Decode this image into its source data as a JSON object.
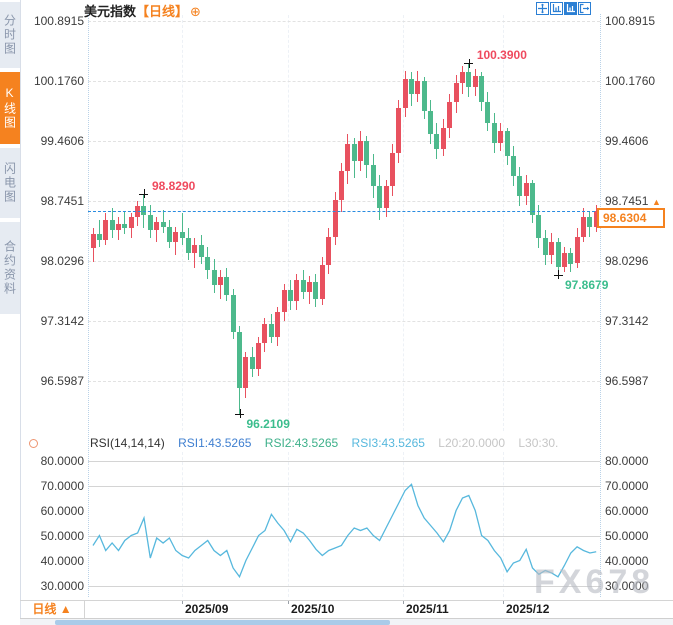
{
  "app": {
    "watermark": "FX678"
  },
  "sidebar": {
    "tabs": [
      {
        "label": "分时图",
        "active": false
      },
      {
        "label": "K线图",
        "active": true
      },
      {
        "label": "闪电图",
        "active": false
      },
      {
        "label": "合约资料",
        "active": false
      }
    ]
  },
  "header": {
    "title": "美元指数",
    "period_tag": "【日线】",
    "add_button": "⊕"
  },
  "price_box": {
    "value": "98.6304",
    "arrow": "▲"
  },
  "bottom": {
    "period_label": "日线 ▲",
    "dates": [
      "2025/09",
      "2025/10",
      "2025/11",
      "2025/12"
    ]
  },
  "rsi_header": {
    "name": "RSI(14,14,14)",
    "rsi1": "RSI1:43.5265",
    "rsi2": "RSI2:43.5265",
    "rsi3": "RSI3:43.5265",
    "l20": "L20:20.0000",
    "l30": "L30:30."
  },
  "chart_data": [
    {
      "type": "candlestick",
      "title": "美元指数",
      "period": "日线",
      "y_ticks": [
        "100.8915",
        "100.1760",
        "99.4606",
        "98.7451",
        "98.0296",
        "97.3142",
        "96.5987"
      ],
      "x_ticks": [
        "2025/09",
        "2025/10",
        "2025/11",
        "2025/12"
      ],
      "ylim": [
        96.24,
        101.25
      ],
      "current_price": 98.6304,
      "markers": [
        {
          "label": "98.8290",
          "value": 98.829,
          "index": 8,
          "kind": "high"
        },
        {
          "label": "100.3900",
          "value": 100.39,
          "index": 59,
          "kind": "high"
        },
        {
          "label": "96.2109",
          "value": 96.2109,
          "index": 23,
          "kind": "low"
        },
        {
          "label": "97.8679",
          "value": 97.8679,
          "index": 73,
          "kind": "low"
        }
      ],
      "colors": {
        "up": "#e8515f",
        "down": "#4db98c",
        "price_line": "#2a8ce0",
        "marker_high": "#ef4a5e",
        "marker_low": "#3bbd8d",
        "price_box": "#f5821f"
      },
      "ohlc": [
        [
          98.18,
          98.42,
          98.02,
          98.35
        ],
        [
          98.35,
          98.52,
          98.2,
          98.28
        ],
        [
          98.28,
          98.6,
          98.22,
          98.52
        ],
        [
          98.52,
          98.66,
          98.3,
          98.4
        ],
        [
          98.4,
          98.55,
          98.28,
          98.47
        ],
        [
          98.47,
          98.62,
          98.35,
          98.42
        ],
        [
          98.42,
          98.6,
          98.3,
          98.55
        ],
        [
          98.55,
          98.75,
          98.45,
          98.68
        ],
        [
          98.68,
          98.829,
          98.42,
          98.58
        ],
        [
          98.58,
          98.7,
          98.3,
          98.4
        ],
        [
          98.4,
          98.56,
          98.26,
          98.5
        ],
        [
          98.5,
          98.64,
          98.36,
          98.44
        ],
        [
          98.44,
          98.52,
          98.18,
          98.26
        ],
        [
          98.26,
          98.44,
          98.1,
          98.38
        ],
        [
          98.38,
          98.6,
          98.22,
          98.3
        ],
        [
          98.3,
          98.42,
          98.04,
          98.12
        ],
        [
          98.12,
          98.3,
          97.95,
          98.22
        ],
        [
          98.22,
          98.34,
          98.0,
          98.08
        ],
        [
          98.08,
          98.2,
          97.82,
          97.92
        ],
        [
          97.92,
          98.05,
          97.65,
          97.74
        ],
        [
          97.74,
          97.92,
          97.58,
          97.84
        ],
        [
          97.84,
          97.95,
          97.55,
          97.62
        ],
        [
          97.62,
          97.7,
          97.1,
          97.18
        ],
        [
          97.18,
          97.25,
          96.2109,
          96.52
        ],
        [
          96.52,
          96.95,
          96.4,
          96.88
        ],
        [
          96.88,
          97.0,
          96.65,
          96.74
        ],
        [
          96.74,
          97.12,
          96.66,
          97.05
        ],
        [
          97.05,
          97.35,
          96.95,
          97.28
        ],
        [
          97.28,
          97.4,
          97.05,
          97.12
        ],
        [
          97.12,
          97.48,
          97.02,
          97.42
        ],
        [
          97.42,
          97.75,
          97.32,
          97.68
        ],
        [
          97.68,
          97.8,
          97.45,
          97.55
        ],
        [
          97.55,
          97.88,
          97.45,
          97.8
        ],
        [
          97.8,
          97.92,
          97.58,
          97.66
        ],
        [
          97.66,
          97.85,
          97.52,
          97.78
        ],
        [
          97.78,
          97.88,
          97.48,
          97.58
        ],
        [
          97.58,
          98.08,
          97.5,
          97.98
        ],
        [
          97.98,
          98.42,
          97.88,
          98.32
        ],
        [
          98.32,
          98.85,
          98.22,
          98.76
        ],
        [
          98.76,
          99.2,
          98.62,
          99.1
        ],
        [
          99.1,
          99.55,
          98.95,
          99.42
        ],
        [
          99.42,
          99.5,
          99.02,
          99.22
        ],
        [
          99.22,
          99.58,
          99.1,
          99.46
        ],
        [
          99.46,
          99.52,
          99.02,
          99.18
        ],
        [
          99.18,
          99.3,
          98.78,
          98.92
        ],
        [
          98.92,
          99.05,
          98.52,
          98.66
        ],
        [
          98.66,
          99.0,
          98.56,
          98.92
        ],
        [
          98.92,
          99.42,
          98.8,
          99.32
        ],
        [
          99.32,
          99.95,
          99.2,
          99.85
        ],
        [
          99.85,
          100.3,
          99.75,
          100.2
        ],
        [
          100.2,
          100.28,
          99.88,
          100.02
        ],
        [
          100.02,
          100.3,
          99.92,
          100.18
        ],
        [
          100.18,
          100.22,
          99.72,
          99.82
        ],
        [
          99.82,
          99.95,
          99.42,
          99.54
        ],
        [
          99.54,
          99.68,
          99.25,
          99.36
        ],
        [
          99.36,
          99.72,
          99.28,
          99.62
        ],
        [
          99.62,
          100.02,
          99.5,
          99.92
        ],
        [
          99.92,
          100.25,
          99.8,
          100.15
        ],
        [
          100.15,
          100.35,
          100.02,
          100.28
        ],
        [
          100.28,
          100.39,
          99.98,
          100.1
        ],
        [
          100.1,
          100.32,
          100.0,
          100.24
        ],
        [
          100.24,
          100.28,
          99.82,
          99.92
        ],
        [
          99.92,
          100.05,
          99.58,
          99.68
        ],
        [
          99.68,
          99.8,
          99.32,
          99.44
        ],
        [
          99.44,
          99.68,
          99.34,
          99.58
        ],
        [
          99.58,
          99.62,
          99.18,
          99.28
        ],
        [
          99.28,
          99.4,
          98.92,
          99.04
        ],
        [
          99.04,
          99.15,
          98.68,
          98.8
        ],
        [
          98.8,
          99.06,
          98.7,
          98.96
        ],
        [
          98.96,
          99.0,
          98.48,
          98.58
        ],
        [
          98.58,
          98.7,
          98.18,
          98.3
        ],
        [
          98.3,
          98.4,
          97.98,
          98.1
        ],
        [
          98.1,
          98.36,
          98.0,
          98.26
        ],
        [
          98.26,
          98.3,
          97.8679,
          97.96
        ],
        [
          97.96,
          98.2,
          97.9,
          98.12
        ],
        [
          98.12,
          98.18,
          97.9,
          98.0
        ],
        [
          98.0,
          98.42,
          97.95,
          98.32
        ],
        [
          98.32,
          98.66,
          98.26,
          98.56
        ],
        [
          98.56,
          98.62,
          98.32,
          98.44
        ],
        [
          98.44,
          98.7,
          98.38,
          98.6304
        ]
      ]
    },
    {
      "type": "line",
      "name": "RSI(14,14,14)",
      "legend": [
        "RSI1:43.5265",
        "RSI2:43.5265",
        "RSI3:43.5265",
        "L20:20.0000",
        "L30:30."
      ],
      "y_ticks": [
        "80.0000",
        "70.0000",
        "60.0000",
        "50.0000",
        "40.0000",
        "30.0000"
      ],
      "ylim": [
        26,
        84
      ],
      "levels_with_gridline": [
        80,
        70,
        50,
        30
      ],
      "line_color": "#57b8dd",
      "values": [
        46,
        50,
        44,
        47,
        44,
        48,
        50,
        51,
        57,
        41,
        49,
        47,
        49,
        44,
        42,
        41,
        44,
        46,
        48,
        44,
        42,
        44,
        37,
        33.5,
        40,
        45,
        50,
        52,
        58.5,
        55,
        52,
        47.5,
        52.5,
        51,
        48,
        44.5,
        42,
        44,
        45,
        46,
        50,
        53,
        52,
        53,
        50,
        48,
        53,
        58,
        63,
        68,
        70.5,
        62,
        57,
        54,
        51,
        47.5,
        52,
        60,
        65,
        66,
        60,
        50,
        48,
        44,
        41,
        35.5,
        39,
        40,
        44.5,
        37,
        34.5,
        36,
        35,
        33.5,
        38,
        43,
        45.5,
        44,
        43,
        43.53
      ]
    }
  ]
}
